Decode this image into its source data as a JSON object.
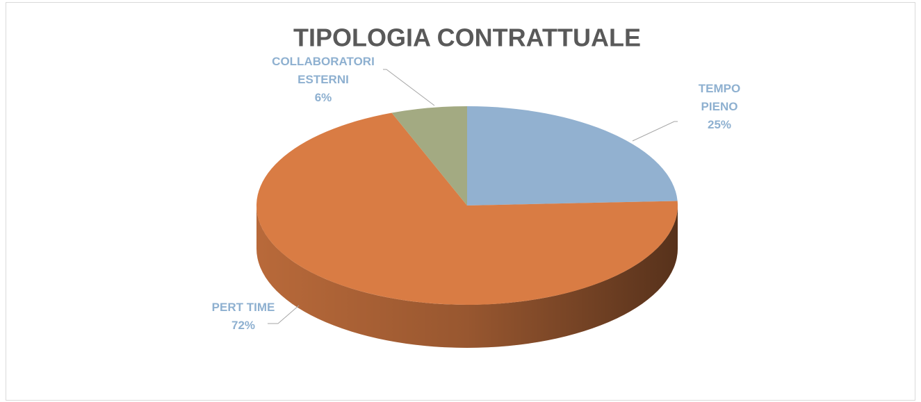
{
  "chart_data": {
    "type": "pie",
    "title": "TIPOLOGIA CONTRATTUALE",
    "categories": [
      "TEMPO PIENO",
      "PERT TIME",
      "COLLABORATORI ESTERNI"
    ],
    "values": [
      25,
      72,
      6
    ],
    "value_labels": [
      "25%",
      "72%",
      "6%"
    ],
    "colors": [
      "#92b1d0",
      "#d97c44",
      "#a3aa82"
    ]
  }
}
